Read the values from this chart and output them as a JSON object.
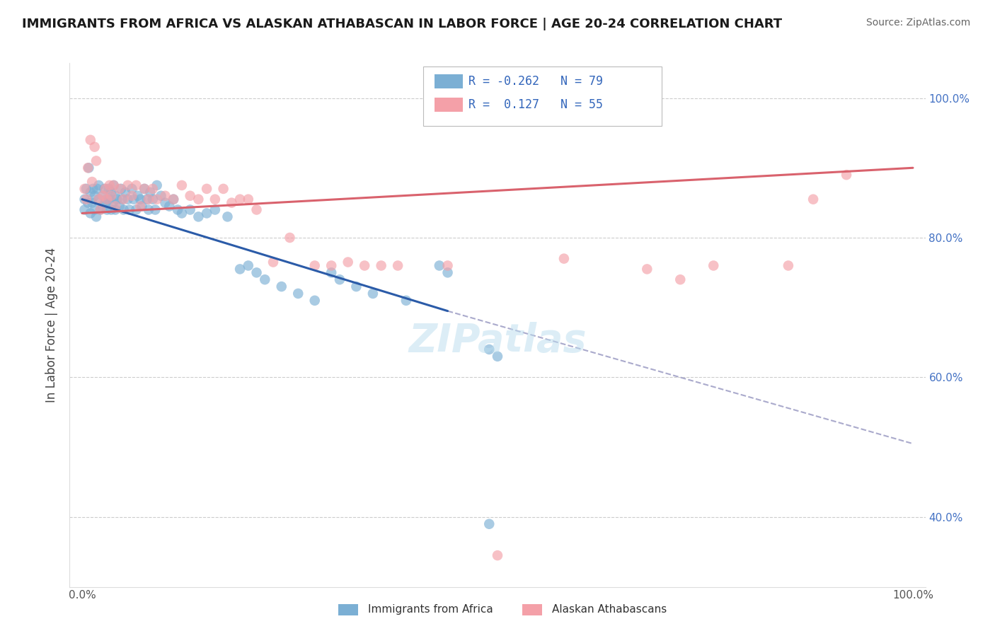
{
  "title": "IMMIGRANTS FROM AFRICA VS ALASKAN ATHABASCAN IN LABOR FORCE | AGE 20-24 CORRELATION CHART",
  "source": "Source: ZipAtlas.com",
  "ylabel": "In Labor Force | Age 20-24",
  "xlim": [
    0.0,
    1.0
  ],
  "ylim": [
    0.3,
    1.05
  ],
  "y_ticks": [
    0.4,
    0.6,
    0.8,
    1.0
  ],
  "legend1_label": "Immigrants from Africa",
  "legend2_label": "Alaskan Athabascans",
  "R_blue": -0.262,
  "N_blue": 79,
  "R_pink": 0.127,
  "N_pink": 55,
  "blue_color": "#7BAFD4",
  "pink_color": "#F4A0A8",
  "blue_line_color": "#2B5BA8",
  "pink_line_color": "#D9626D",
  "blue_line_start_x": 0.0,
  "blue_line_start_y": 0.855,
  "blue_line_solid_end_x": 0.44,
  "blue_line_solid_end_y": 0.695,
  "blue_line_dash_end_x": 1.0,
  "blue_line_dash_end_y": 0.505,
  "pink_line_start_x": 0.0,
  "pink_line_start_y": 0.835,
  "pink_line_end_x": 1.0,
  "pink_line_end_y": 0.9,
  "blue_x": [
    0.003,
    0.003,
    0.005,
    0.007,
    0.008,
    0.01,
    0.01,
    0.012,
    0.013,
    0.015,
    0.015,
    0.017,
    0.018,
    0.02,
    0.02,
    0.022,
    0.025,
    0.025,
    0.027,
    0.028,
    0.03,
    0.03,
    0.032,
    0.033,
    0.035,
    0.035,
    0.037,
    0.038,
    0.04,
    0.04,
    0.042,
    0.045,
    0.047,
    0.048,
    0.05,
    0.052,
    0.055,
    0.057,
    0.06,
    0.062,
    0.065,
    0.067,
    0.07,
    0.072,
    0.075,
    0.078,
    0.08,
    0.082,
    0.085,
    0.088,
    0.09,
    0.095,
    0.1,
    0.105,
    0.11,
    0.115,
    0.12,
    0.13,
    0.14,
    0.15,
    0.16,
    0.175,
    0.19,
    0.2,
    0.21,
    0.22,
    0.24,
    0.26,
    0.28,
    0.3,
    0.31,
    0.33,
    0.35,
    0.39,
    0.43,
    0.44,
    0.49,
    0.5,
    0.49
  ],
  "blue_y": [
    0.855,
    0.84,
    0.87,
    0.85,
    0.9,
    0.835,
    0.865,
    0.85,
    0.87,
    0.84,
    0.86,
    0.83,
    0.87,
    0.855,
    0.875,
    0.84,
    0.86,
    0.845,
    0.87,
    0.85,
    0.855,
    0.84,
    0.87,
    0.855,
    0.84,
    0.865,
    0.85,
    0.875,
    0.84,
    0.86,
    0.855,
    0.845,
    0.87,
    0.855,
    0.84,
    0.865,
    0.855,
    0.84,
    0.87,
    0.855,
    0.84,
    0.86,
    0.855,
    0.845,
    0.87,
    0.855,
    0.84,
    0.865,
    0.855,
    0.84,
    0.875,
    0.86,
    0.85,
    0.845,
    0.855,
    0.84,
    0.835,
    0.84,
    0.83,
    0.835,
    0.84,
    0.83,
    0.755,
    0.76,
    0.75,
    0.74,
    0.73,
    0.72,
    0.71,
    0.75,
    0.74,
    0.73,
    0.72,
    0.71,
    0.76,
    0.75,
    0.64,
    0.63,
    0.39
  ],
  "pink_x": [
    0.003,
    0.005,
    0.007,
    0.01,
    0.012,
    0.015,
    0.017,
    0.02,
    0.022,
    0.025,
    0.028,
    0.03,
    0.033,
    0.035,
    0.038,
    0.04,
    0.045,
    0.05,
    0.055,
    0.06,
    0.065,
    0.07,
    0.075,
    0.08,
    0.085,
    0.09,
    0.1,
    0.11,
    0.12,
    0.13,
    0.14,
    0.15,
    0.16,
    0.17,
    0.18,
    0.19,
    0.2,
    0.21,
    0.23,
    0.25,
    0.28,
    0.3,
    0.32,
    0.34,
    0.36,
    0.38,
    0.44,
    0.58,
    0.68,
    0.72,
    0.76,
    0.85,
    0.88,
    0.92,
    0.5
  ],
  "pink_y": [
    0.87,
    0.855,
    0.9,
    0.94,
    0.88,
    0.93,
    0.91,
    0.855,
    0.84,
    0.86,
    0.87,
    0.855,
    0.875,
    0.86,
    0.875,
    0.845,
    0.87,
    0.855,
    0.875,
    0.86,
    0.875,
    0.845,
    0.87,
    0.855,
    0.87,
    0.855,
    0.86,
    0.855,
    0.875,
    0.86,
    0.855,
    0.87,
    0.855,
    0.87,
    0.85,
    0.855,
    0.855,
    0.84,
    0.765,
    0.8,
    0.76,
    0.76,
    0.765,
    0.76,
    0.76,
    0.76,
    0.76,
    0.77,
    0.755,
    0.74,
    0.76,
    0.76,
    0.855,
    0.89,
    0.345
  ]
}
